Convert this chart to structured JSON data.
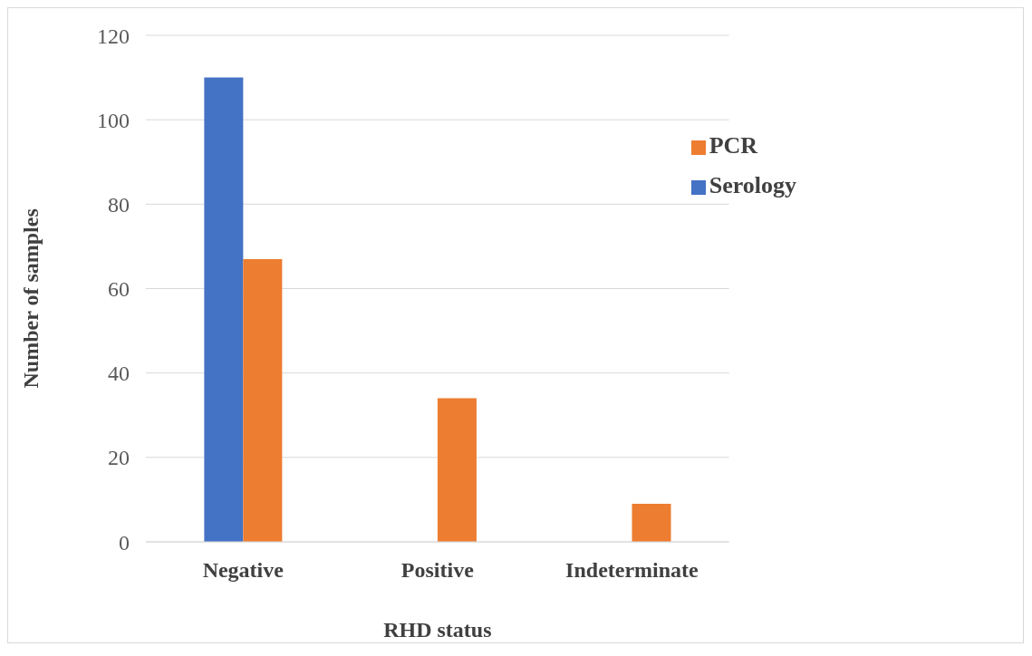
{
  "chart_data": {
    "type": "bar",
    "xlabel": "RHD status",
    "ylabel": "Number of samples",
    "categories": [
      "Negative",
      "Positive",
      "Indeterminate"
    ],
    "series": [
      {
        "name": "Serology",
        "color": "#4472c4",
        "values": [
          110,
          0,
          0
        ]
      },
      {
        "name": "PCR",
        "color": "#ed7d31",
        "values": [
          67,
          34,
          9
        ]
      }
    ],
    "ylim": [
      0,
      120
    ],
    "yticks": [
      0,
      20,
      40,
      60,
      80,
      100,
      120
    ],
    "grid": "y",
    "legend": "top right"
  }
}
